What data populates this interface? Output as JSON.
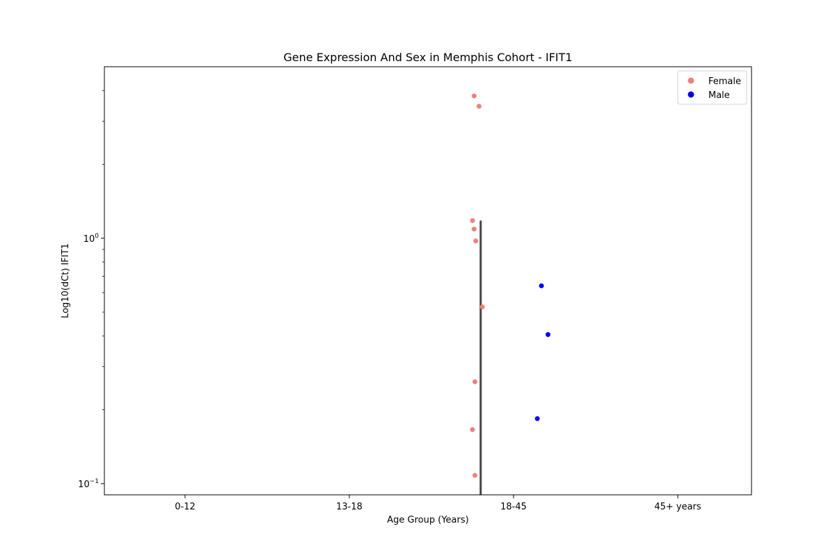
{
  "chart_data": {
    "type": "scatter",
    "title": "Gene Expression And Sex in Memphis Cohort - IFIT1",
    "xlabel": "Age Group (Years)",
    "ylabel": "Log10(dCt) IFIT1",
    "y_scale": "log",
    "ylim": [
      0.09,
      5.0
    ],
    "categories": [
      "0-12",
      "13-18",
      "18-45",
      "45+ years"
    ],
    "y_ticks": [
      {
        "value": 0.1,
        "base": "10",
        "exp": "−1"
      },
      {
        "value": 1,
        "base": "10",
        "exp": "0"
      }
    ],
    "legend": {
      "placement": "top-right"
    },
    "series": [
      {
        "name": "Female",
        "color": "#f08080",
        "points": [
          {
            "category": "18-45",
            "jitter": -0.24,
            "y": 3.8
          },
          {
            "category": "18-45",
            "jitter": -0.21,
            "y": 3.45
          },
          {
            "category": "18-45",
            "jitter": -0.25,
            "y": 1.18
          },
          {
            "category": "18-45",
            "jitter": -0.24,
            "y": 1.09
          },
          {
            "category": "18-45",
            "jitter": -0.23,
            "y": 0.975
          },
          {
            "category": "18-45",
            "jitter": -0.19,
            "y": 0.525
          },
          {
            "category": "18-45",
            "jitter": -0.235,
            "y": 0.26
          },
          {
            "category": "18-45",
            "jitter": -0.25,
            "y": 0.166
          },
          {
            "category": "18-45",
            "jitter": -0.235,
            "y": 0.108
          }
        ]
      },
      {
        "name": "Male",
        "color": "#0000ee",
        "points": [
          {
            "category": "18-45",
            "jitter": 0.17,
            "y": 0.64
          },
          {
            "category": "18-45",
            "jitter": 0.21,
            "y": 0.405
          },
          {
            "category": "18-45",
            "jitter": 0.145,
            "y": 0.184
          }
        ]
      }
    ],
    "error_bars": [
      {
        "category": "18-45",
        "offset": -0.2,
        "low": 0.085,
        "high": 1.18,
        "color": "#444444"
      }
    ]
  }
}
